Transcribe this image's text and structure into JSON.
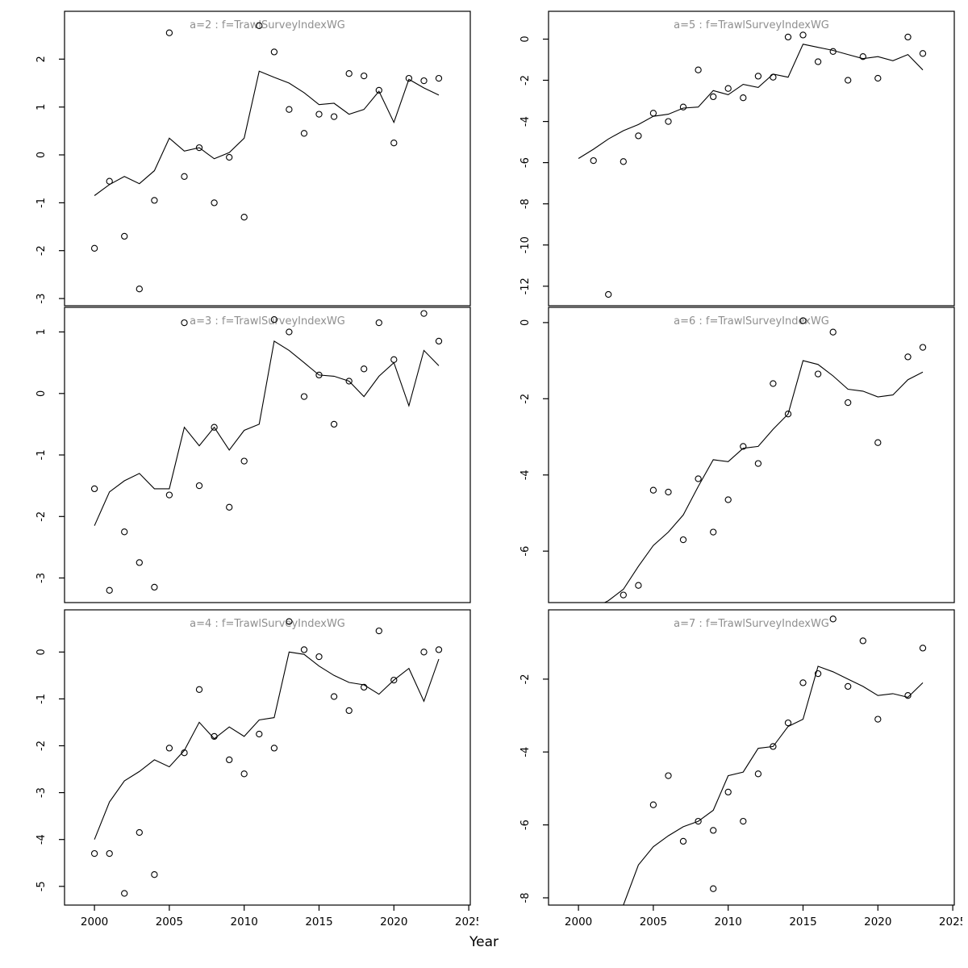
{
  "figure": {
    "xlabel": "Year",
    "colors": {
      "background": "#ffffff",
      "line": "#000000",
      "point": "#000000",
      "panel_title": "#8f8f8f",
      "axis": "#000000"
    }
  },
  "chart_data": [
    {
      "type": "line",
      "panel": "a2",
      "title": "a=2 : f=TrawlSurveyIndexWG",
      "xlabel": "Year",
      "grid": false,
      "legend": "none",
      "xlim": [
        1998,
        2025.1
      ],
      "ylim": [
        -3.15,
        3.0
      ],
      "xticks": [
        2000,
        2005,
        2010,
        2015,
        2020,
        2025
      ],
      "yticks": [
        -3,
        -2,
        -1,
        0,
        1,
        2
      ],
      "series": [
        {
          "name": "observed index",
          "style": "points",
          "x": [
            2000,
            2001,
            2002,
            2003,
            2004,
            2005,
            2006,
            2007,
            2008,
            2009,
            2010,
            2011,
            2012,
            2013,
            2014,
            2015,
            2016,
            2017,
            2018,
            2019,
            2020,
            2021,
            2022,
            2023
          ],
          "y": [
            -1.95,
            -0.55,
            -1.7,
            -2.8,
            -0.95,
            2.55,
            -0.45,
            0.15,
            -1.0,
            -0.05,
            -1.3,
            2.7,
            2.15,
            0.95,
            0.45,
            0.85,
            0.8,
            1.7,
            1.65,
            1.35,
            0.25,
            1.6,
            1.55,
            1.6
          ]
        },
        {
          "name": "model fit",
          "style": "line",
          "x": [
            2000,
            2001,
            2002,
            2003,
            2004,
            2005,
            2006,
            2007,
            2008,
            2009,
            2010,
            2011,
            2012,
            2013,
            2014,
            2015,
            2016,
            2017,
            2018,
            2019,
            2020,
            2021,
            2022,
            2023
          ],
          "y": [
            -0.85,
            -0.62,
            -0.45,
            -0.6,
            -0.33,
            0.35,
            0.08,
            0.15,
            -0.08,
            0.05,
            0.35,
            1.75,
            1.62,
            1.5,
            1.3,
            1.05,
            1.08,
            0.85,
            0.95,
            1.33,
            0.68,
            1.58,
            1.4,
            1.25
          ]
        }
      ]
    },
    {
      "type": "line",
      "panel": "a5",
      "title": "a=5 : f=TrawlSurveyIndexWG",
      "xlabel": "Year",
      "grid": false,
      "legend": "none",
      "xlim": [
        1998,
        2025.1
      ],
      "ylim": [
        -12.95,
        1.35
      ],
      "xticks": [
        2000,
        2005,
        2010,
        2015,
        2020,
        2025
      ],
      "yticks": [
        0,
        -2,
        -4,
        -6,
        -8,
        -10,
        -12
      ],
      "series": [
        {
          "name": "observed index",
          "style": "points",
          "x": [
            2001,
            2002,
            2003,
            2004,
            2005,
            2006,
            2007,
            2008,
            2009,
            2010,
            2011,
            2012,
            2013,
            2014,
            2015,
            2016,
            2017,
            2018,
            2019,
            2020,
            2022,
            2023
          ],
          "y": [
            -5.9,
            -12.4,
            -5.95,
            -4.7,
            -3.6,
            -4.0,
            -3.3,
            -1.5,
            -2.8,
            -2.4,
            -2.85,
            -1.8,
            -1.85,
            0.1,
            0.2,
            -1.1,
            -0.6,
            -2.0,
            -0.85,
            -1.9,
            0.1,
            -0.7
          ]
        },
        {
          "name": "model fit",
          "style": "line",
          "x": [
            2000,
            2001,
            2002,
            2003,
            2004,
            2005,
            2006,
            2007,
            2008,
            2009,
            2010,
            2011,
            2012,
            2013,
            2014,
            2015,
            2016,
            2017,
            2018,
            2019,
            2020,
            2021,
            2022,
            2023
          ],
          "y": [
            -5.8,
            -5.35,
            -4.85,
            -4.45,
            -4.15,
            -3.75,
            -3.65,
            -3.35,
            -3.3,
            -2.5,
            -2.7,
            -2.2,
            -2.35,
            -1.7,
            -1.85,
            -0.25,
            -0.4,
            -0.55,
            -0.75,
            -0.95,
            -0.85,
            -1.05,
            -0.75,
            -1.5
          ]
        }
      ]
    },
    {
      "type": "line",
      "panel": "a3",
      "title": "a=3 : f=TrawlSurveyIndexWG",
      "xlabel": "Year",
      "grid": false,
      "legend": "none",
      "xlim": [
        1998,
        2025.1
      ],
      "ylim": [
        -3.4,
        1.4
      ],
      "xticks": [
        2000,
        2005,
        2010,
        2015,
        2020,
        2025
      ],
      "yticks": [
        1,
        0,
        -1,
        -2,
        -3
      ],
      "series": [
        {
          "name": "observed index",
          "style": "points",
          "x": [
            2000,
            2001,
            2002,
            2003,
            2004,
            2005,
            2006,
            2007,
            2008,
            2009,
            2010,
            2012,
            2013,
            2014,
            2015,
            2016,
            2017,
            2018,
            2019,
            2020,
            2022,
            2023
          ],
          "y": [
            -1.55,
            -3.2,
            -2.25,
            -2.75,
            -3.15,
            -1.65,
            1.15,
            -1.5,
            -0.55,
            -1.85,
            -1.1,
            1.2,
            1.0,
            -0.05,
            0.3,
            -0.5,
            0.2,
            0.4,
            1.15,
            0.55,
            1.3,
            0.85
          ]
        },
        {
          "name": "model fit",
          "style": "line",
          "x": [
            2000,
            2001,
            2002,
            2003,
            2004,
            2005,
            2006,
            2007,
            2008,
            2009,
            2010,
            2011,
            2012,
            2013,
            2014,
            2015,
            2016,
            2017,
            2018,
            2019,
            2020,
            2021,
            2022,
            2023
          ],
          "y": [
            -2.15,
            -1.6,
            -1.42,
            -1.3,
            -1.55,
            -1.55,
            -0.55,
            -0.85,
            -0.55,
            -0.92,
            -0.6,
            -0.5,
            0.85,
            0.7,
            0.5,
            0.3,
            0.28,
            0.2,
            -0.05,
            0.28,
            0.5,
            -0.2,
            0.7,
            0.45
          ]
        }
      ]
    },
    {
      "type": "line",
      "panel": "a6",
      "title": "a=6 : f=TrawlSurveyIndexWG",
      "xlabel": "Year",
      "grid": false,
      "legend": "none",
      "xlim": [
        1998,
        2025.1
      ],
      "ylim": [
        -7.35,
        0.4
      ],
      "xticks": [
        2000,
        2005,
        2010,
        2015,
        2020,
        2025
      ],
      "yticks": [
        0,
        -2,
        -4,
        -6
      ],
      "series": [
        {
          "name": "observed index",
          "style": "points",
          "x": [
            2003,
            2004,
            2005,
            2006,
            2007,
            2008,
            2009,
            2010,
            2011,
            2012,
            2013,
            2014,
            2015,
            2016,
            2017,
            2018,
            2020,
            2022,
            2023
          ],
          "y": [
            -7.15,
            -6.9,
            -4.4,
            -4.45,
            -5.7,
            -4.1,
            -5.5,
            -4.65,
            -3.25,
            -3.7,
            -1.6,
            -2.4,
            0.05,
            -1.35,
            -0.25,
            -2.1,
            -3.15,
            -0.9,
            -0.65
          ]
        },
        {
          "name": "model fit",
          "style": "line",
          "x": [
            2001,
            2002,
            2003,
            2004,
            2005,
            2006,
            2007,
            2008,
            2009,
            2010,
            2011,
            2012,
            2013,
            2014,
            2015,
            2016,
            2017,
            2018,
            2019,
            2020,
            2021,
            2022,
            2023
          ],
          "y": [
            -7.5,
            -7.3,
            -7.0,
            -6.4,
            -5.85,
            -5.5,
            -5.05,
            -4.3,
            -3.6,
            -3.65,
            -3.3,
            -3.25,
            -2.8,
            -2.4,
            -1.0,
            -1.1,
            -1.4,
            -1.75,
            -1.8,
            -1.95,
            -1.9,
            -1.5,
            -1.3
          ]
        }
      ]
    },
    {
      "type": "line",
      "panel": "a4",
      "title": "a=4 : f=TrawlSurveyIndexWG",
      "xlabel": "Year",
      "grid": false,
      "legend": "none",
      "xlim": [
        1998,
        2025.1
      ],
      "ylim": [
        -5.4,
        0.9
      ],
      "xticks": [
        2000,
        2005,
        2010,
        2015,
        2020,
        2025
      ],
      "yticks": [
        0,
        -1,
        -2,
        -3,
        -4,
        -5
      ],
      "series": [
        {
          "name": "observed index",
          "style": "points",
          "x": [
            2000,
            2001,
            2002,
            2003,
            2004,
            2005,
            2006,
            2007,
            2008,
            2009,
            2010,
            2011,
            2012,
            2013,
            2014,
            2015,
            2016,
            2017,
            2018,
            2019,
            2020,
            2022,
            2023
          ],
          "y": [
            -4.3,
            -4.3,
            -5.15,
            -3.85,
            -4.75,
            -2.05,
            -2.15,
            -0.8,
            -1.8,
            -2.3,
            -2.6,
            -1.75,
            -2.05,
            0.65,
            0.05,
            -0.1,
            -0.95,
            -1.25,
            -0.75,
            0.45,
            -0.6,
            0.0,
            0.05
          ]
        },
        {
          "name": "model fit",
          "style": "line",
          "x": [
            2000,
            2001,
            2002,
            2003,
            2004,
            2005,
            2006,
            2007,
            2008,
            2009,
            2010,
            2011,
            2012,
            2013,
            2014,
            2015,
            2016,
            2017,
            2018,
            2019,
            2020,
            2021,
            2022,
            2023
          ],
          "y": [
            -4.0,
            -3.2,
            -2.75,
            -2.55,
            -2.3,
            -2.45,
            -2.1,
            -1.5,
            -1.85,
            -1.6,
            -1.8,
            -1.45,
            -1.4,
            0.0,
            -0.05,
            -0.3,
            -0.5,
            -0.65,
            -0.7,
            -0.9,
            -0.6,
            -0.35,
            -1.05,
            -0.15
          ]
        }
      ]
    },
    {
      "type": "line",
      "panel": "a7",
      "title": "a=7 : f=TrawlSurveyIndexWG",
      "xlabel": "Year",
      "grid": false,
      "legend": "none",
      "xlim": [
        1998,
        2025.1
      ],
      "ylim": [
        -8.2,
        -0.1
      ],
      "xticks": [
        2000,
        2005,
        2010,
        2015,
        2020,
        2025
      ],
      "yticks": [
        -2,
        -4,
        -6,
        -8
      ],
      "series": [
        {
          "name": "observed index",
          "style": "points",
          "x": [
            2005,
            2006,
            2007,
            2008,
            2009,
            2009,
            2010,
            2011,
            2012,
            2013,
            2014,
            2015,
            2016,
            2017,
            2018,
            2019,
            2020,
            2022,
            2023
          ],
          "y": [
            -5.45,
            -4.65,
            -6.45,
            -5.9,
            -6.15,
            -7.75,
            -5.1,
            -5.9,
            -4.6,
            -3.85,
            -3.2,
            -2.1,
            -1.85,
            -0.35,
            -2.2,
            -0.95,
            -3.1,
            -2.45,
            -1.15
          ]
        },
        {
          "name": "model fit",
          "style": "line",
          "x": [
            2003,
            2004,
            2005,
            2006,
            2007,
            2008,
            2009,
            2010,
            2011,
            2012,
            2013,
            2014,
            2015,
            2016,
            2017,
            2018,
            2019,
            2020,
            2021,
            2022,
            2023
          ],
          "y": [
            -8.2,
            -7.1,
            -6.6,
            -6.3,
            -6.05,
            -5.9,
            -5.6,
            -4.65,
            -4.55,
            -3.9,
            -3.85,
            -3.3,
            -3.1,
            -1.65,
            -1.8,
            -2.0,
            -2.2,
            -2.45,
            -2.4,
            -2.5,
            -2.1
          ]
        }
      ]
    }
  ]
}
